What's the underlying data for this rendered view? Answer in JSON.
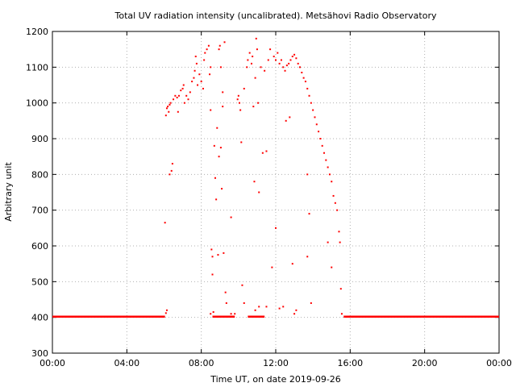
{
  "chart_data": {
    "type": "scatter",
    "title": "Total UV radiation intensity (uncalibrated). Metsähovi Radio Observatory",
    "xlabel": "Time UT, on date 2019-09-26",
    "ylabel": "Arbitrary unit",
    "xlim": [
      0,
      24
    ],
    "ylim": [
      300,
      1200
    ],
    "xticks": [
      {
        "value": 0,
        "label": "00:00"
      },
      {
        "value": 4,
        "label": "04:00"
      },
      {
        "value": 8,
        "label": "08:00"
      },
      {
        "value": 12,
        "label": "12:00"
      },
      {
        "value": 16,
        "label": "16:00"
      },
      {
        "value": 20,
        "label": "20:00"
      },
      {
        "value": 24,
        "label": "00:00"
      }
    ],
    "yticks": [
      {
        "value": 300,
        "label": "300"
      },
      {
        "value": 400,
        "label": "400"
      },
      {
        "value": 500,
        "label": "500"
      },
      {
        "value": 600,
        "label": "600"
      },
      {
        "value": 700,
        "label": "700"
      },
      {
        "value": 800,
        "label": "800"
      },
      {
        "value": 900,
        "label": "900"
      },
      {
        "value": 1000,
        "label": "1000"
      },
      {
        "value": 1100,
        "label": "1100"
      },
      {
        "value": 1200,
        "label": "1200"
      }
    ],
    "grid": true,
    "legend": "none",
    "marker_color": "#ff0000",
    "baseline": {
      "value": 402,
      "ranges": [
        [
          0,
          6.05
        ],
        [
          8.6,
          9.8
        ],
        [
          10.5,
          11.4
        ],
        [
          15.65,
          24
        ]
      ]
    },
    "series": [
      {
        "values": [
          [
            6.05,
            665
          ],
          [
            6.1,
            412
          ],
          [
            6.15,
            420
          ],
          [
            6.1,
            965
          ],
          [
            6.15,
            985
          ],
          [
            6.2,
            990
          ],
          [
            6.25,
            975
          ],
          [
            6.3,
            995
          ],
          [
            6.35,
            1000
          ],
          [
            6.3,
            800
          ],
          [
            6.4,
            810
          ],
          [
            6.45,
            830
          ],
          [
            6.5,
            1010
          ],
          [
            6.6,
            1020
          ],
          [
            6.7,
            1015
          ],
          [
            6.75,
            975
          ],
          [
            6.8,
            1020
          ],
          [
            6.9,
            1035
          ],
          [
            7.0,
            1040
          ],
          [
            7.05,
            1050
          ],
          [
            7.1,
            1000
          ],
          [
            7.2,
            1020
          ],
          [
            7.3,
            1010
          ],
          [
            7.4,
            1030
          ],
          [
            7.5,
            1060
          ],
          [
            7.6,
            1070
          ],
          [
            7.65,
            1090
          ],
          [
            7.7,
            1130
          ],
          [
            7.75,
            1110
          ],
          [
            7.8,
            1050
          ],
          [
            7.9,
            1080
          ],
          [
            8.0,
            1060
          ],
          [
            8.1,
            1040
          ],
          [
            8.15,
            1120
          ],
          [
            8.2,
            1140
          ],
          [
            8.3,
            1150
          ],
          [
            8.4,
            1160
          ],
          [
            8.45,
            1080
          ],
          [
            8.5,
            980
          ],
          [
            8.5,
            1100
          ],
          [
            8.55,
            590
          ],
          [
            8.6,
            570
          ],
          [
            8.6,
            520
          ],
          [
            8.65,
            415
          ],
          [
            8.7,
            880
          ],
          [
            8.75,
            790
          ],
          [
            8.8,
            730
          ],
          [
            8.85,
            930
          ],
          [
            8.9,
            575
          ],
          [
            8.95,
            850
          ],
          [
            8.95,
            1150
          ],
          [
            9.0,
            1160
          ],
          [
            9.05,
            1100
          ],
          [
            9.05,
            875
          ],
          [
            9.1,
            760
          ],
          [
            9.15,
            1030
          ],
          [
            9.15,
            990
          ],
          [
            9.2,
            580
          ],
          [
            9.25,
            1170
          ],
          [
            9.3,
            470
          ],
          [
            9.35,
            440
          ],
          [
            9.6,
            680
          ],
          [
            9.95,
            1010
          ],
          [
            10.0,
            1020
          ],
          [
            10.05,
            1000
          ],
          [
            10.1,
            980
          ],
          [
            10.15,
            890
          ],
          [
            10.2,
            490
          ],
          [
            10.3,
            1040
          ],
          [
            10.45,
            1100
          ],
          [
            10.5,
            1120
          ],
          [
            10.6,
            1140
          ],
          [
            10.7,
            1110
          ],
          [
            10.75,
            1130
          ],
          [
            10.8,
            990
          ],
          [
            10.85,
            780
          ],
          [
            10.9,
            1070
          ],
          [
            10.95,
            1180
          ],
          [
            11.0,
            1150
          ],
          [
            11.05,
            1000
          ],
          [
            11.1,
            750
          ],
          [
            11.2,
            1100
          ],
          [
            11.3,
            860
          ],
          [
            11.4,
            1090
          ],
          [
            11.5,
            865
          ],
          [
            11.6,
            1120
          ],
          [
            11.7,
            1150
          ],
          [
            11.8,
            540
          ],
          [
            11.9,
            1130
          ],
          [
            12.0,
            1120
          ],
          [
            12.1,
            1140
          ],
          [
            12.2,
            1110
          ],
          [
            12.3,
            1120
          ],
          [
            12.4,
            1100
          ],
          [
            12.5,
            1090
          ],
          [
            12.55,
            950
          ],
          [
            12.6,
            1105
          ],
          [
            12.7,
            1110
          ],
          [
            12.75,
            960
          ],
          [
            12.8,
            1120
          ],
          [
            12.9,
            1130
          ],
          [
            13.0,
            1135
          ],
          [
            13.1,
            1125
          ],
          [
            13.2,
            1110
          ],
          [
            13.3,
            1100
          ],
          [
            13.4,
            1085
          ],
          [
            13.5,
            1070
          ],
          [
            13.6,
            1060
          ],
          [
            13.7,
            1040
          ],
          [
            13.8,
            1020
          ],
          [
            13.9,
            1000
          ],
          [
            14.0,
            980
          ],
          [
            14.1,
            960
          ],
          [
            14.2,
            940
          ],
          [
            14.3,
            920
          ],
          [
            14.4,
            900
          ],
          [
            14.5,
            880
          ],
          [
            14.6,
            860
          ],
          [
            14.7,
            840
          ],
          [
            14.8,
            820
          ],
          [
            14.9,
            800
          ],
          [
            15.0,
            780
          ],
          [
            15.1,
            740
          ],
          [
            15.2,
            720
          ],
          [
            15.3,
            700
          ],
          [
            15.4,
            640
          ],
          [
            15.45,
            610
          ],
          [
            15.5,
            480
          ],
          [
            15.55,
            410
          ],
          [
            13.7,
            570
          ],
          [
            13.7,
            800
          ],
          [
            13.8,
            690
          ],
          [
            13.9,
            440
          ],
          [
            14.4,
            900
          ],
          [
            14.8,
            610
          ],
          [
            15.0,
            540
          ],
          [
            12.0,
            650
          ],
          [
            9.6,
            410
          ],
          [
            11.1,
            430
          ],
          [
            12.4,
            430
          ],
          [
            13.1,
            420
          ],
          [
            10.3,
            440
          ],
          [
            12.9,
            550
          ],
          [
            11.5,
            430
          ],
          [
            8.5,
            410
          ],
          [
            10.9,
            420
          ],
          [
            13.0,
            410
          ],
          [
            12.2,
            425
          ],
          [
            9.8,
            410
          ]
        ]
      }
    ]
  }
}
